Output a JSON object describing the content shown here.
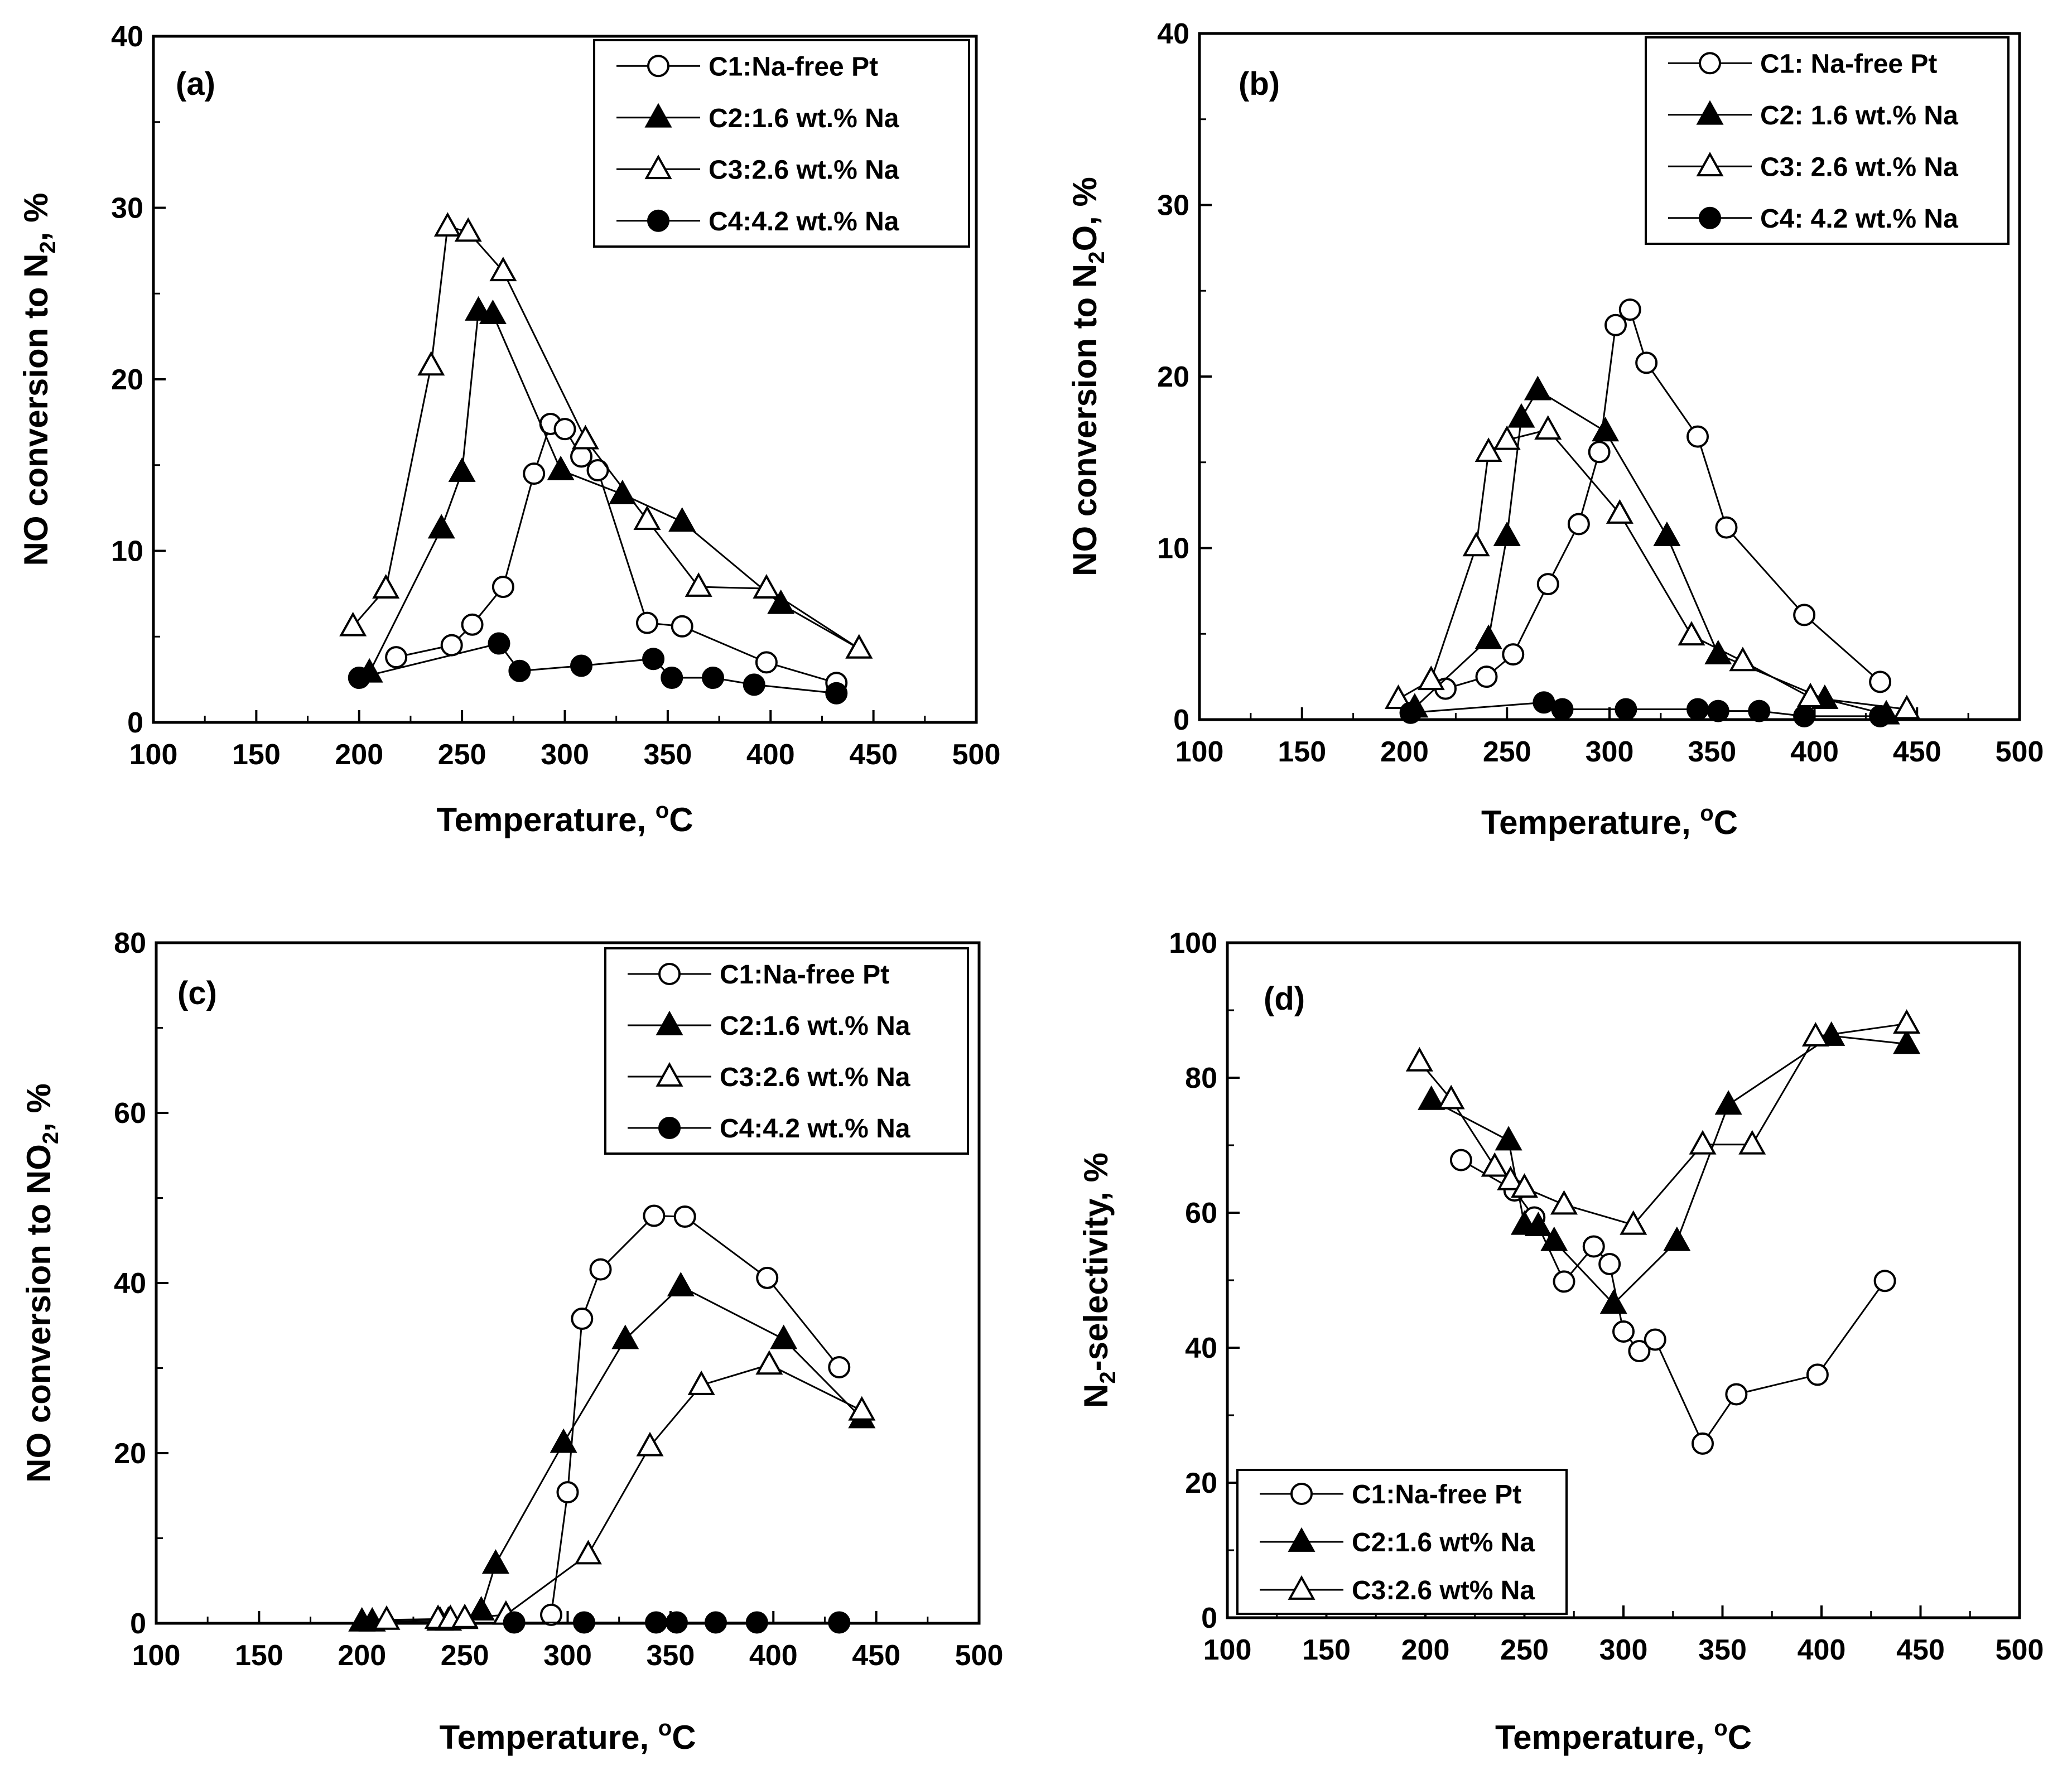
{
  "figure": {
    "panels": [
      {
        "id": "a"
      },
      {
        "id": "b"
      },
      {
        "id": "c"
      },
      {
        "id": "d"
      }
    ]
  },
  "chart_data": [
    {
      "panel": "(a)",
      "type": "scatter",
      "xlabel": "Temperature, °C",
      "ylabel": "NO conversion to N2, %",
      "xlim": [
        100,
        500
      ],
      "ylim": [
        0,
        40
      ],
      "xticks": [
        100,
        150,
        200,
        250,
        300,
        350,
        400,
        450,
        500
      ],
      "yticks": [
        0,
        10,
        20,
        30,
        40
      ],
      "legend_position": "top-right",
      "series": [
        {
          "name": "C1:Na-free Pt",
          "marker": "circle-open",
          "x": [
            218,
            245,
            255,
            270,
            285,
            293,
            300,
            308,
            316,
            340,
            357,
            398,
            432
          ],
          "y": [
            3.8,
            4.5,
            5.7,
            7.9,
            14.5,
            17.4,
            17.1,
            15.5,
            14.7,
            5.8,
            5.6,
            3.5,
            2.3
          ]
        },
        {
          "name": "C2:1.6 wt.% Na",
          "marker": "triangle-filled",
          "x": [
            205,
            240,
            250,
            258,
            265,
            298,
            328,
            357,
            405,
            443
          ],
          "y": [
            2.9,
            11.3,
            14.6,
            24.0,
            23.8,
            14.7,
            13.3,
            11.7,
            6.9,
            4.3
          ]
        },
        {
          "name": "C3:2.6 wt.% Na",
          "marker": "triangle-open",
          "x": [
            197,
            213,
            235,
            243,
            253,
            270,
            310,
            340,
            365,
            398,
            443
          ],
          "y": [
            5.6,
            7.8,
            20.8,
            28.9,
            28.6,
            26.3,
            16.5,
            11.8,
            7.9,
            7.8,
            4.3
          ]
        },
        {
          "name": "C4:4.2 wt.% Na",
          "marker": "circle-filled",
          "x": [
            200,
            268,
            278,
            308,
            343,
            352,
            372,
            392,
            432
          ],
          "y": [
            2.6,
            4.6,
            3.0,
            3.3,
            3.7,
            2.6,
            2.6,
            2.2,
            1.7
          ]
        }
      ]
    },
    {
      "panel": "(b)",
      "type": "scatter",
      "xlabel": "Temperature, °C",
      "ylabel": "NO conversion to N2O, %",
      "xlim": [
        100,
        500
      ],
      "ylim": [
        0,
        40
      ],
      "xticks": [
        100,
        150,
        200,
        250,
        300,
        350,
        400,
        450,
        500
      ],
      "yticks": [
        0,
        10,
        20,
        30,
        40
      ],
      "legend_position": "top-right",
      "series": [
        {
          "name": "C1: Na-free Pt",
          "marker": "circle-open",
          "x": [
            220,
            240,
            253,
            270,
            285,
            295,
            303,
            310,
            318,
            343,
            357,
            395,
            432
          ],
          "y": [
            1.8,
            2.5,
            3.8,
            7.9,
            11.4,
            15.6,
            23.0,
            23.9,
            20.8,
            16.5,
            11.2,
            6.1,
            2.2
          ]
        },
        {
          "name": "C2: 1.6 wt.% Na",
          "marker": "triangle-filled",
          "x": [
            205,
            241,
            250,
            257,
            265,
            298,
            328,
            353,
            405,
            435
          ],
          "y": [
            0.7,
            4.7,
            10.7,
            17.6,
            19.2,
            16.8,
            10.7,
            3.8,
            1.2,
            0.3
          ]
        },
        {
          "name": "C3: 2.6 wt.% Na",
          "marker": "triangle-open",
          "x": [
            197,
            213,
            235,
            241,
            250,
            270,
            305,
            340,
            365,
            398,
            445
          ],
          "y": [
            1.2,
            2.3,
            10.1,
            15.6,
            16.3,
            16.9,
            12.0,
            4.9,
            3.4,
            1.3,
            0.6
          ]
        },
        {
          "name": "C4: 4.2 wt.% Na",
          "marker": "circle-filled",
          "x": [
            203,
            268,
            277,
            308,
            343,
            353,
            373,
            395,
            432
          ],
          "y": [
            0.4,
            1.0,
            0.6,
            0.6,
            0.6,
            0.5,
            0.5,
            0.2,
            0.2
          ]
        }
      ]
    },
    {
      "panel": "(c)",
      "type": "scatter",
      "xlabel": "Temperature, °C",
      "ylabel": "NO conversion to NO2, %",
      "xlim": [
        100,
        500
      ],
      "ylim": [
        0,
        80
      ],
      "xticks": [
        100,
        150,
        200,
        250,
        300,
        350,
        400,
        450,
        500
      ],
      "yticks": [
        0,
        20,
        40,
        60,
        80
      ],
      "legend_position": "top-right",
      "series": [
        {
          "name": "C1:Na-free Pt",
          "marker": "circle-open",
          "x": [
            292,
            300,
            307,
            316,
            342,
            357,
            397,
            432
          ],
          "y": [
            1.0,
            15.4,
            35.8,
            41.6,
            47.9,
            47.8,
            40.6,
            30.1
          ]
        },
        {
          "name": "C2:1.6 wt.% Na",
          "marker": "triangle-filled",
          "x": [
            200,
            205,
            238,
            242,
            250,
            258,
            265,
            298,
            328,
            355,
            405,
            443
          ],
          "y": [
            0.2,
            0.2,
            0.3,
            0.3,
            0.5,
            1.5,
            7.0,
            21.2,
            33.4,
            39.6,
            33.4,
            24.1
          ]
        },
        {
          "name": "C3:2.6 wt.% Na",
          "marker": "triangle-open",
          "x": [
            212,
            237,
            243,
            250,
            270,
            310,
            340,
            365,
            398,
            443
          ],
          "y": [
            0.4,
            0.5,
            0.5,
            0.6,
            1.0,
            8.1,
            20.8,
            28.0,
            30.4,
            25.0
          ]
        },
        {
          "name": "C4:4.2 wt.% Na",
          "marker": "circle-filled",
          "x": [
            274,
            308,
            343,
            353,
            372,
            392,
            432
          ],
          "y": [
            0.1,
            0.1,
            0.1,
            0.1,
            0.1,
            0.1,
            0.1
          ]
        }
      ]
    },
    {
      "panel": "(d)",
      "type": "scatter",
      "xlabel": "Temperature, °C",
      "ylabel": "N2-selectivity, %",
      "xlim": [
        100,
        500
      ],
      "ylim": [
        0,
        100
      ],
      "xticks": [
        100,
        150,
        200,
        250,
        300,
        350,
        400,
        450,
        500
      ],
      "yticks": [
        0,
        20,
        40,
        60,
        80,
        100
      ],
      "legend_position": "bottom-left",
      "series": [
        {
          "name": "C1:Na-free Pt",
          "marker": "circle-open",
          "x": [
            218,
            245,
            255,
            270,
            285,
            293,
            300,
            308,
            316,
            340,
            357,
            398,
            432
          ],
          "y": [
            67.8,
            63.3,
            59.3,
            49.8,
            55.0,
            52.4,
            42.4,
            39.5,
            41.2,
            25.8,
            33.1,
            36.0,
            49.9
          ]
        },
        {
          "name": "C2:1.6 wt% Na",
          "marker": "triangle-filled",
          "x": [
            203,
            242,
            250,
            257,
            265,
            295,
            327,
            353,
            405,
            443
          ],
          "y": [
            76.7,
            70.7,
            58.2,
            58.0,
            55.8,
            46.5,
            55.8,
            76.0,
            86.2,
            85.0
          ]
        },
        {
          "name": "C3:2.6 wt% Na",
          "marker": "triangle-open",
          "x": [
            197,
            213,
            235,
            243,
            250,
            270,
            305,
            340,
            365,
            397,
            443
          ],
          "y": [
            82.4,
            76.8,
            66.8,
            64.8,
            63.7,
            61.2,
            58.2,
            70.1,
            70.1,
            86.1,
            88.0
          ]
        }
      ]
    }
  ]
}
